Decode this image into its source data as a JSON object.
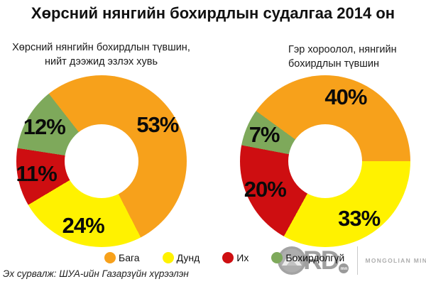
{
  "title": "Хөрсний нянгийн бохирдлын судалгаа 2014 он",
  "source": "Эх сурвалж: ШУА-ийн Газарзүйн хүрээлэн",
  "colors": {
    "orange": "#F7A11B",
    "yellow": "#FFF200",
    "red": "#CE0E11",
    "green": "#7EA95B"
  },
  "legend": {
    "items": [
      {
        "label": "Бага",
        "color": "orange"
      },
      {
        "label": "Дунд",
        "color": "yellow"
      },
      {
        "label": "Их",
        "color": "red"
      },
      {
        "label": "Бохирдолгүй",
        "color": "green"
      }
    ]
  },
  "watermark": {
    "letters": "RD",
    "badge": "mn",
    "brand": "MONGOLIAN MINING",
    "emblem": "mountain-icon"
  },
  "chart_data": [
    {
      "type": "pie",
      "subtype": "donut",
      "title": "Хөрсний нянгийн бохирдлын түвшин, нийт дээжид эзлэх хувь",
      "unit": "%",
      "start_angle_deg": -38,
      "legend_position": "bottom",
      "segments": [
        {
          "label": "Бага",
          "value": 53,
          "color": "orange"
        },
        {
          "label": "Дунд",
          "value": 24,
          "color": "yellow"
        },
        {
          "label": "Их",
          "value": 11,
          "color": "red"
        },
        {
          "label": "Бохирдолгүй",
          "value": 12,
          "color": "green"
        }
      ]
    },
    {
      "type": "pie",
      "subtype": "donut",
      "title": "Гэр хороолол, нянгийн бохирдлын түвшин",
      "unit": "%",
      "start_angle_deg": -54,
      "legend_position": "bottom",
      "segments": [
        {
          "label": "Бага",
          "value": 40,
          "color": "orange"
        },
        {
          "label": "Дунд",
          "value": 33,
          "color": "yellow"
        },
        {
          "label": "Их",
          "value": 20,
          "color": "red"
        },
        {
          "label": "Бохирдолгүй",
          "value": 7,
          "color": "green"
        }
      ]
    }
  ]
}
